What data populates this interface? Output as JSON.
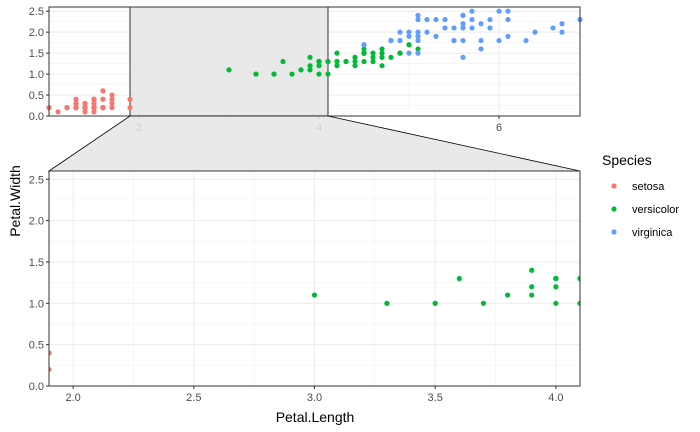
{
  "chart_data": [
    {
      "panel": "overview",
      "type": "scatter",
      "xlabel": "",
      "ylabel": "",
      "xlim": [
        1.0,
        6.9
      ],
      "ylim": [
        0.0,
        2.6
      ],
      "x_ticks": [
        2,
        4,
        6
      ],
      "y_ticks": [
        "0.0",
        "0.5",
        "1.0",
        "1.5",
        "2.0",
        "2.5"
      ],
      "grid": true,
      "zoom_region": {
        "x": [
          1.9,
          4.1
        ],
        "y": [
          0.0,
          2.6
        ]
      },
      "series": [
        {
          "name": "setosa",
          "color": "#F8766D",
          "points": [
            [
              1.4,
              0.2
            ],
            [
              1.4,
              0.2
            ],
            [
              1.3,
              0.2
            ],
            [
              1.5,
              0.2
            ],
            [
              1.4,
              0.2
            ],
            [
              1.7,
              0.4
            ],
            [
              1.4,
              0.3
            ],
            [
              1.5,
              0.2
            ],
            [
              1.4,
              0.2
            ],
            [
              1.5,
              0.1
            ],
            [
              1.5,
              0.2
            ],
            [
              1.6,
              0.2
            ],
            [
              1.4,
              0.1
            ],
            [
              1.1,
              0.1
            ],
            [
              1.2,
              0.2
            ],
            [
              1.5,
              0.4
            ],
            [
              1.3,
              0.4
            ],
            [
              1.4,
              0.3
            ],
            [
              1.7,
              0.3
            ],
            [
              1.5,
              0.3
            ],
            [
              1.7,
              0.2
            ],
            [
              1.5,
              0.4
            ],
            [
              1.0,
              0.2
            ],
            [
              1.7,
              0.5
            ],
            [
              1.9,
              0.2
            ],
            [
              1.6,
              0.2
            ],
            [
              1.6,
              0.4
            ],
            [
              1.5,
              0.2
            ],
            [
              1.4,
              0.2
            ],
            [
              1.6,
              0.2
            ],
            [
              1.6,
              0.2
            ],
            [
              1.5,
              0.4
            ],
            [
              1.5,
              0.1
            ],
            [
              1.4,
              0.2
            ],
            [
              1.5,
              0.2
            ],
            [
              1.2,
              0.2
            ],
            [
              1.3,
              0.2
            ],
            [
              1.4,
              0.1
            ],
            [
              1.3,
              0.2
            ],
            [
              1.5,
              0.2
            ],
            [
              1.3,
              0.3
            ],
            [
              1.3,
              0.3
            ],
            [
              1.3,
              0.2
            ],
            [
              1.6,
              0.6
            ],
            [
              1.9,
              0.4
            ],
            [
              1.4,
              0.3
            ],
            [
              1.6,
              0.2
            ],
            [
              1.4,
              0.2
            ],
            [
              1.5,
              0.2
            ],
            [
              1.4,
              0.2
            ]
          ]
        },
        {
          "name": "versicolor",
          "color": "#00BA38",
          "points": [
            [
              4.7,
              1.4
            ],
            [
              4.5,
              1.5
            ],
            [
              4.9,
              1.5
            ],
            [
              4.0,
              1.3
            ],
            [
              4.6,
              1.5
            ],
            [
              4.5,
              1.3
            ],
            [
              4.7,
              1.6
            ],
            [
              3.3,
              1.0
            ],
            [
              4.6,
              1.3
            ],
            [
              3.9,
              1.4
            ],
            [
              3.5,
              1.0
            ],
            [
              4.2,
              1.5
            ],
            [
              4.0,
              1.0
            ],
            [
              4.7,
              1.4
            ],
            [
              3.6,
              1.3
            ],
            [
              4.4,
              1.4
            ],
            [
              4.5,
              1.5
            ],
            [
              4.1,
              1.0
            ],
            [
              4.5,
              1.5
            ],
            [
              3.9,
              1.1
            ],
            [
              4.8,
              1.8
            ],
            [
              4.0,
              1.3
            ],
            [
              4.9,
              1.5
            ],
            [
              4.7,
              1.2
            ],
            [
              4.3,
              1.3
            ],
            [
              4.4,
              1.4
            ],
            [
              4.8,
              1.4
            ],
            [
              5.0,
              1.7
            ],
            [
              4.5,
              1.5
            ],
            [
              3.5,
              1.0
            ],
            [
              3.8,
              1.1
            ],
            [
              3.7,
              1.0
            ],
            [
              3.9,
              1.2
            ],
            [
              5.1,
              1.6
            ],
            [
              4.5,
              1.5
            ],
            [
              4.5,
              1.6
            ],
            [
              4.7,
              1.5
            ],
            [
              4.4,
              1.3
            ],
            [
              4.1,
              1.3
            ],
            [
              4.0,
              1.3
            ],
            [
              4.4,
              1.2
            ],
            [
              4.6,
              1.4
            ],
            [
              4.0,
              1.2
            ],
            [
              3.3,
              1.0
            ],
            [
              4.2,
              1.3
            ],
            [
              4.2,
              1.2
            ],
            [
              4.2,
              1.3
            ],
            [
              4.3,
              1.3
            ],
            [
              3.0,
              1.1
            ],
            [
              4.1,
              1.3
            ]
          ]
        },
        {
          "name": "virginica",
          "color": "#619CFF",
          "points": [
            [
              6.0,
              2.5
            ],
            [
              5.1,
              1.9
            ],
            [
              5.9,
              2.1
            ],
            [
              5.6,
              1.8
            ],
            [
              5.8,
              2.2
            ],
            [
              6.6,
              2.1
            ],
            [
              4.5,
              1.7
            ],
            [
              6.3,
              1.8
            ],
            [
              5.8,
              1.8
            ],
            [
              6.1,
              2.5
            ],
            [
              5.1,
              2.0
            ],
            [
              5.3,
              1.9
            ],
            [
              5.5,
              2.1
            ],
            [
              5.0,
              2.0
            ],
            [
              5.1,
              2.4
            ],
            [
              5.3,
              2.3
            ],
            [
              5.5,
              1.8
            ],
            [
              6.7,
              2.2
            ],
            [
              6.9,
              2.3
            ],
            [
              5.0,
              1.5
            ],
            [
              5.7,
              2.3
            ],
            [
              4.9,
              2.0
            ],
            [
              6.7,
              2.0
            ],
            [
              4.9,
              1.8
            ],
            [
              5.7,
              2.1
            ],
            [
              6.0,
              1.8
            ],
            [
              4.8,
              1.8
            ],
            [
              4.9,
              1.8
            ],
            [
              5.6,
              2.1
            ],
            [
              5.8,
              1.6
            ],
            [
              6.1,
              1.9
            ],
            [
              6.4,
              2.0
            ],
            [
              5.6,
              2.2
            ],
            [
              5.1,
              1.5
            ],
            [
              5.6,
              1.4
            ],
            [
              6.1,
              2.3
            ],
            [
              5.6,
              2.4
            ],
            [
              5.5,
              1.8
            ],
            [
              4.8,
              1.8
            ],
            [
              5.4,
              2.1
            ],
            [
              5.6,
              2.4
            ],
            [
              5.1,
              2.3
            ],
            [
              5.1,
              1.9
            ],
            [
              5.9,
              2.3
            ],
            [
              5.7,
              2.5
            ],
            [
              5.2,
              2.3
            ],
            [
              5.0,
              1.9
            ],
            [
              5.2,
              2.0
            ],
            [
              5.4,
              2.3
            ],
            [
              5.1,
              1.8
            ]
          ]
        }
      ]
    },
    {
      "panel": "zoom",
      "type": "scatter",
      "xlabel": "Petal.Length",
      "ylabel": "Petal.Width",
      "xlim": [
        1.9,
        4.1
      ],
      "ylim": [
        0.0,
        2.6
      ],
      "x_ticks": [
        "2.0",
        "2.5",
        "3.0",
        "3.5",
        "4.0"
      ],
      "y_ticks": [
        "0.0",
        "0.5",
        "1.0",
        "1.5",
        "2.0",
        "2.5"
      ],
      "grid": true,
      "series_ref": "overview"
    }
  ],
  "legend": {
    "title": "Species",
    "placement": "right",
    "items": [
      {
        "label": "setosa",
        "color": "#F8766D"
      },
      {
        "label": "versicolor",
        "color": "#00BA38"
      },
      {
        "label": "virginica",
        "color": "#619CFF"
      }
    ]
  }
}
